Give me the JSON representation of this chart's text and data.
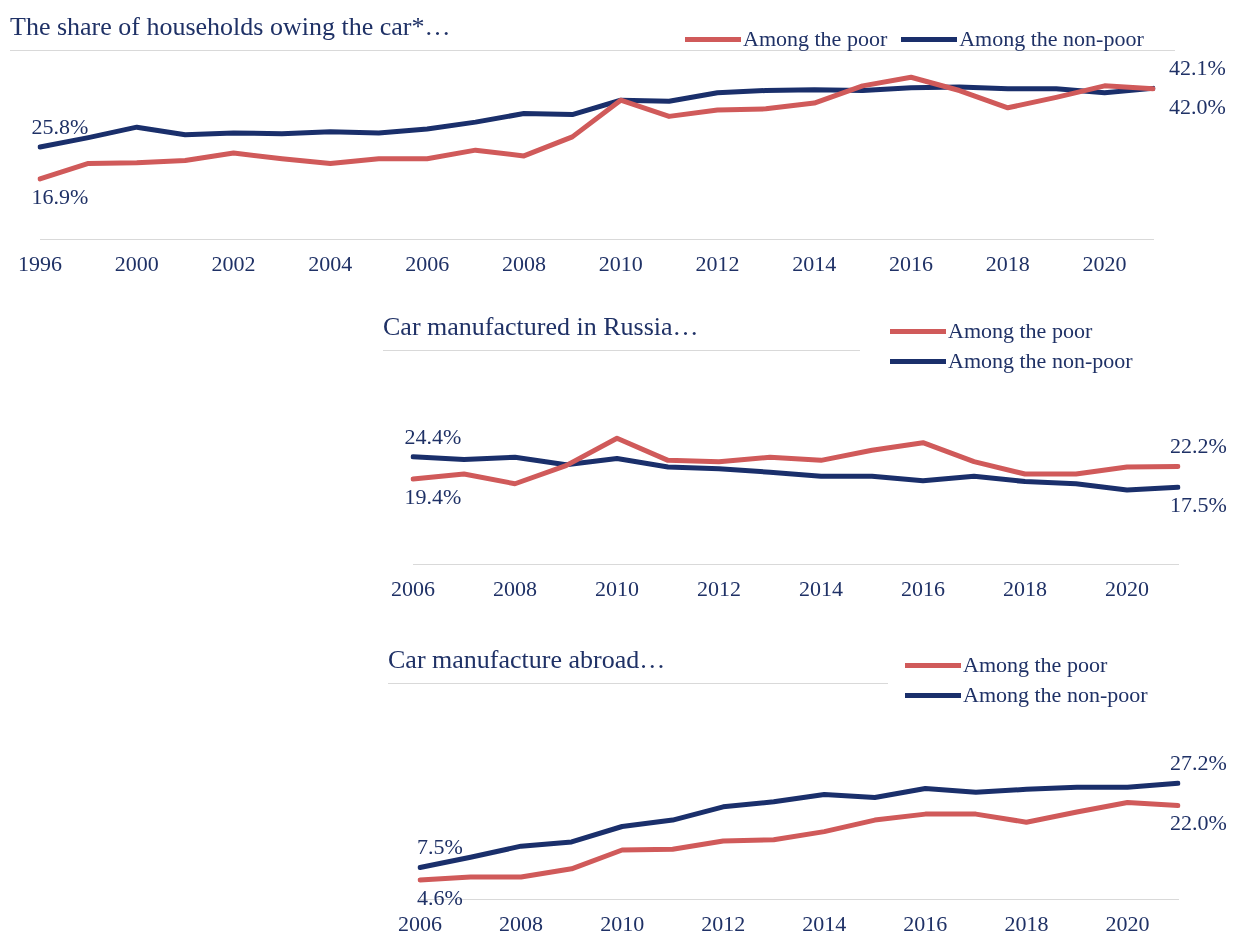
{
  "chart_data": [
    {
      "type": "line",
      "title": "The share of households owing the car*…",
      "legend": "top right",
      "tick_labels": "x",
      "grid": false,
      "categories": [
        "1996",
        null,
        "2000",
        null,
        "2002",
        null,
        "2004",
        null,
        "2006",
        null,
        "2008",
        null,
        "2010",
        null,
        "2012",
        null,
        "2014",
        null,
        "2016",
        null,
        "2018",
        null,
        "2020",
        null
      ],
      "series": [
        {
          "name": "Among the poor",
          "color": "#d05a5a",
          "values": [
            16.9,
            21.2,
            21.4,
            22.0,
            24.1,
            22.5,
            21.2,
            22.5,
            22.5,
            24.9,
            23.3,
            28.6,
            38.8,
            34.3,
            36.1,
            36.4,
            38.0,
            42.8,
            45.2,
            41.5,
            36.7,
            39.6,
            42.8,
            42.0
          ],
          "value_labels": [
            "16.9%",
            null,
            null,
            null,
            null,
            null,
            null,
            null,
            null,
            null,
            null,
            null,
            null,
            null,
            null,
            null,
            null,
            null,
            null,
            null,
            null,
            null,
            null,
            "42.0%"
          ]
        },
        {
          "name": "Among the non-poor",
          "color": "#1a2f6b",
          "values": [
            25.8,
            28.4,
            31.3,
            29.2,
            29.7,
            29.5,
            30.0,
            29.7,
            30.8,
            32.7,
            35.1,
            34.8,
            38.8,
            38.5,
            40.9,
            41.5,
            41.7,
            41.5,
            42.3,
            42.5,
            42.0,
            42.0,
            40.9,
            42.1
          ],
          "value_labels": [
            "25.8%",
            null,
            null,
            null,
            null,
            null,
            null,
            null,
            null,
            null,
            null,
            null,
            null,
            null,
            null,
            null,
            null,
            null,
            null,
            null,
            null,
            null,
            null,
            "42.1%"
          ]
        }
      ]
    },
    {
      "type": "line",
      "title": "Car manufactured in Russia…",
      "legend": "top right",
      "tick_labels": "x",
      "grid": false,
      "categories": [
        "2006",
        null,
        "2008",
        null,
        "2010",
        null,
        "2012",
        null,
        "2014",
        null,
        "2016",
        null,
        "2018",
        null,
        "2020",
        null
      ],
      "series": [
        {
          "name": "Among the poor",
          "color": "#d05a5a",
          "values": [
            19.4,
            20.5,
            18.3,
            22.4,
            28.6,
            23.6,
            23.3,
            24.3,
            23.6,
            25.9,
            27.6,
            23.3,
            20.5,
            20.5,
            22.1,
            22.2
          ],
          "value_labels": [
            "19.4%",
            null,
            null,
            null,
            null,
            null,
            null,
            null,
            null,
            null,
            null,
            null,
            null,
            null,
            null,
            "22.2%"
          ]
        },
        {
          "name": "Among the non-poor",
          "color": "#1a2f6b",
          "values": [
            24.4,
            23.8,
            24.3,
            22.6,
            24.0,
            22.1,
            21.7,
            20.9,
            20.0,
            20.0,
            19.0,
            20.0,
            18.8,
            18.3,
            16.9,
            17.5
          ],
          "value_labels": [
            "24.4%",
            null,
            null,
            null,
            null,
            null,
            null,
            null,
            null,
            null,
            null,
            null,
            null,
            null,
            null,
            "17.5%"
          ]
        }
      ]
    },
    {
      "type": "line",
      "title": "Car manufacture abroad…",
      "legend": "top right",
      "tick_labels": "x",
      "grid": false,
      "categories": [
        "2006",
        null,
        "2008",
        null,
        "2010",
        null,
        "2012",
        null,
        "2014",
        null,
        "2016",
        null,
        "2018",
        null,
        "2020",
        null
      ],
      "series": [
        {
          "name": "Among the poor",
          "color": "#d05a5a",
          "values": [
            4.6,
            5.3,
            5.3,
            7.2,
            11.6,
            11.8,
            13.7,
            14.0,
            15.9,
            18.6,
            20.0,
            20.0,
            18.1,
            20.5,
            22.7,
            22.0
          ],
          "value_labels": [
            "4.6%",
            null,
            null,
            null,
            null,
            null,
            null,
            null,
            null,
            null,
            null,
            null,
            null,
            null,
            null,
            "22.0%"
          ]
        },
        {
          "name": "Among the non-poor",
          "color": "#1a2f6b",
          "values": [
            7.5,
            9.9,
            12.5,
            13.5,
            17.1,
            18.6,
            21.7,
            22.9,
            24.6,
            23.9,
            26.0,
            25.1,
            25.8,
            26.3,
            26.3,
            27.2
          ],
          "value_labels": [
            "7.5%",
            null,
            null,
            null,
            null,
            null,
            null,
            null,
            null,
            null,
            null,
            null,
            null,
            null,
            null,
            "27.2%"
          ]
        }
      ]
    }
  ]
}
